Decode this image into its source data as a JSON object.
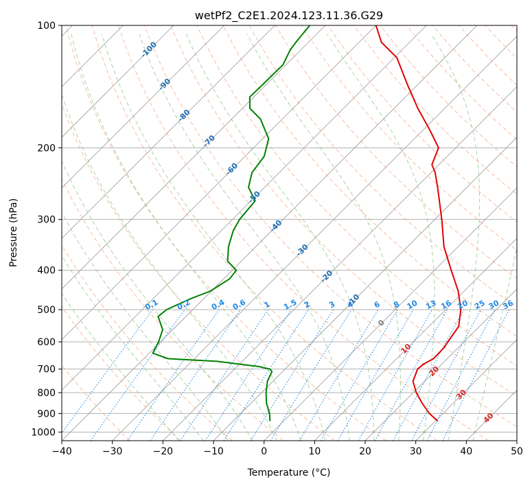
{
  "chart_data": {
    "type": "line",
    "title": "wetPf2_C2E1.2024.123.11.36.G29",
    "xlabel": "Temperature (°C)",
    "ylabel": "Pressure (hPa)",
    "xlim": [
      -40,
      50
    ],
    "ylim": [
      1050,
      100
    ],
    "y_scale": "log",
    "x_ticks": [
      -40,
      -30,
      -20,
      -10,
      0,
      10,
      20,
      30,
      40,
      50
    ],
    "x_tick_labels": [
      "−40",
      "−30",
      "−20",
      "−10",
      "0",
      "10",
      "20",
      "30",
      "40",
      "50"
    ],
    "y_ticks": [
      1000,
      900,
      800,
      700,
      600,
      500,
      400,
      300,
      200,
      100
    ],
    "y_tick_labels": [
      "1000",
      "900",
      "800",
      "700",
      "600",
      "500",
      "400",
      "300",
      "200",
      "100"
    ],
    "skew_deg": 45,
    "colors": {
      "temperature": "#e00000",
      "dewpoint": "#008000",
      "isobar": "#b0b0b0",
      "isotherm": "#999999",
      "dry_adiabat": "#f4a582",
      "moist_adiabat": "#92c794",
      "mixing_ratio": "#1e88e5",
      "isotherm_label": "#1f6fb4",
      "mixing_label": "#1e88e5",
      "red_label": "#d62728",
      "zero_label": "#808080"
    },
    "series": [
      {
        "name": "Temperature",
        "points": [
          {
            "p": 940,
            "t": 30.5
          },
          {
            "p": 900,
            "t": 27.3
          },
          {
            "p": 850,
            "t": 23.9
          },
          {
            "p": 800,
            "t": 20.6
          },
          {
            "p": 750,
            "t": 17.7
          },
          {
            "p": 700,
            "t": 16.2
          },
          {
            "p": 680,
            "t": 16.4
          },
          {
            "p": 660,
            "t": 17.3
          },
          {
            "p": 620,
            "t": 17.2
          },
          {
            "p": 600,
            "t": 16.8
          },
          {
            "p": 550,
            "t": 15.9
          },
          {
            "p": 500,
            "t": 13.0
          },
          {
            "p": 450,
            "t": 8.8
          },
          {
            "p": 400,
            "t": 3.3
          },
          {
            "p": 350,
            "t": -2.8
          },
          {
            "p": 300,
            "t": -8.6
          },
          {
            "p": 250,
            "t": -15.8
          },
          {
            "p": 230,
            "t": -19.2
          },
          {
            "p": 220,
            "t": -21.4
          },
          {
            "p": 200,
            "t": -23.4
          },
          {
            "p": 180,
            "t": -28.9
          },
          {
            "p": 160,
            "t": -35.3
          },
          {
            "p": 140,
            "t": -42.0
          },
          {
            "p": 120,
            "t": -49.5
          },
          {
            "p": 110,
            "t": -55.6
          },
          {
            "p": 100,
            "t": -60.0
          }
        ]
      },
      {
        "name": "Dewpoint",
        "points": [
          {
            "p": 940,
            "t": -2.7
          },
          {
            "p": 900,
            "t": -4.3
          },
          {
            "p": 850,
            "t": -6.9
          },
          {
            "p": 800,
            "t": -9.1
          },
          {
            "p": 750,
            "t": -11.1
          },
          {
            "p": 710,
            "t": -12.1
          },
          {
            "p": 700,
            "t": -13.0
          },
          {
            "p": 690,
            "t": -15.7
          },
          {
            "p": 670,
            "t": -25.0
          },
          {
            "p": 660,
            "t": -35.2
          },
          {
            "p": 640,
            "t": -39.3
          },
          {
            "p": 600,
            "t": -40.4
          },
          {
            "p": 560,
            "t": -42.0
          },
          {
            "p": 540,
            "t": -43.7
          },
          {
            "p": 520,
            "t": -45.5
          },
          {
            "p": 500,
            "t": -45.2
          },
          {
            "p": 470,
            "t": -42.6
          },
          {
            "p": 450,
            "t": -40.2
          },
          {
            "p": 420,
            "t": -38.8
          },
          {
            "p": 400,
            "t": -39.2
          },
          {
            "p": 380,
            "t": -42.7
          },
          {
            "p": 350,
            "t": -45.4
          },
          {
            "p": 320,
            "t": -47.6
          },
          {
            "p": 300,
            "t": -48.6
          },
          {
            "p": 270,
            "t": -49.2
          },
          {
            "p": 250,
            "t": -53.2
          },
          {
            "p": 230,
            "t": -55.4
          },
          {
            "p": 210,
            "t": -56.2
          },
          {
            "p": 190,
            "t": -58.8
          },
          {
            "p": 170,
            "t": -64.3
          },
          {
            "p": 160,
            "t": -68.5
          },
          {
            "p": 150,
            "t": -70.8
          },
          {
            "p": 140,
            "t": -70.7
          },
          {
            "p": 125,
            "t": -70.6
          },
          {
            "p": 115,
            "t": -72.1
          },
          {
            "p": 110,
            "t": -72.5
          },
          {
            "p": 100,
            "t": -73.1
          }
        ]
      }
    ],
    "isotherm_labels": [
      {
        "text": "-100",
        "t": -100,
        "p": 115
      },
      {
        "text": "-90",
        "t": -90,
        "p": 140
      },
      {
        "text": "-80",
        "t": -80,
        "p": 167
      },
      {
        "text": "-70",
        "t": -70,
        "p": 193
      },
      {
        "text": "-60",
        "t": -60,
        "p": 226
      },
      {
        "text": "-50",
        "t": -50,
        "p": 265
      },
      {
        "text": "-40",
        "t": -40,
        "p": 312
      },
      {
        "text": "-30",
        "t": -30,
        "p": 358
      },
      {
        "text": "-20",
        "t": -20,
        "p": 415
      },
      {
        "text": "-10",
        "t": -10,
        "p": 475
      }
    ],
    "mixing_ratio_labels": [
      {
        "text": "0.1",
        "w": 0.1
      },
      {
        "text": "0.2",
        "w": 0.2
      },
      {
        "text": "0.4",
        "w": 0.4
      },
      {
        "text": "0.6",
        "w": 0.6
      },
      {
        "text": "1",
        "w": 1
      },
      {
        "text": "1.5",
        "w": 1.5
      },
      {
        "text": "2",
        "w": 2
      },
      {
        "text": "3",
        "w": 3
      },
      {
        "text": "4",
        "w": 4
      },
      {
        "text": "6",
        "w": 6
      },
      {
        "text": "8",
        "w": 8
      },
      {
        "text": "10",
        "w": 10
      },
      {
        "text": "13",
        "w": 13
      },
      {
        "text": "16",
        "w": 16
      },
      {
        "text": "20",
        "w": 20
      },
      {
        "text": "25",
        "w": 25
      },
      {
        "text": "30",
        "w": 30
      },
      {
        "text": "36",
        "w": 36
      }
    ],
    "isotherm_positive_labels": [
      {
        "text": "0",
        "t": 0,
        "p": 540
      },
      {
        "text": "10",
        "t": 10,
        "p": 625
      },
      {
        "text": "20",
        "t": 20,
        "p": 710
      },
      {
        "text": "30",
        "t": 30,
        "p": 810
      },
      {
        "text": "40",
        "t": 40,
        "p": 925
      }
    ]
  }
}
